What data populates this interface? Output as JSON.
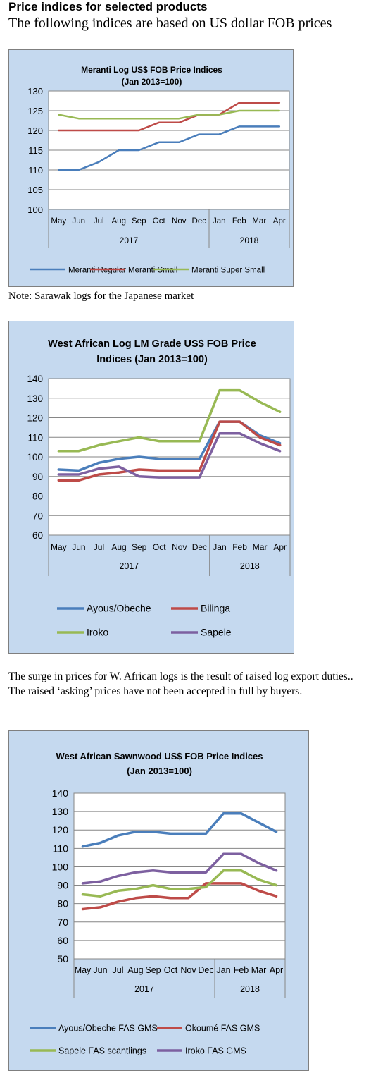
{
  "page": {
    "heading": "Price indices for selected products",
    "subheading": "The following indices are based on US dollar FOB prices",
    "note": "Note: Sarawak logs for the Japanese market",
    "paragraph": "The surge in prices for W. African logs is the result of raised log export duties.. The raised ‘asking’ prices have not been accepted in full by buyers."
  },
  "chart_data": [
    {
      "type": "line",
      "title": [
        "Meranti Log US$ FOB Price Indices",
        "(Jan 2013=100)"
      ],
      "categories": [
        "May",
        "Jun",
        "Jul",
        "Aug",
        "Sep",
        "Oct",
        "Nov",
        "Dec",
        "Jan",
        "Feb",
        "Mar",
        "Apr"
      ],
      "groups": [
        {
          "label": "2017",
          "count": 8
        },
        {
          "label": "2018",
          "count": 4
        }
      ],
      "ylim": [
        100,
        130
      ],
      "yticks": [
        100,
        105,
        110,
        115,
        120,
        125,
        130
      ],
      "grid": true,
      "legend_position": "bottom",
      "series": [
        {
          "name": "Meranti Regular",
          "color": "#4a7ebb",
          "values": [
            110,
            110,
            112,
            115,
            115,
            117,
            117,
            119,
            119,
            121,
            121,
            121
          ]
        },
        {
          "name": "Meranti Small",
          "color": "#be4b48",
          "values": [
            120,
            120,
            120,
            120,
            120,
            122,
            122,
            124,
            124,
            127,
            127,
            127
          ]
        },
        {
          "name": "Meranti Super Small",
          "color": "#98b954",
          "values": [
            124,
            123,
            123,
            123,
            123,
            123,
            123,
            124,
            124,
            125,
            125,
            125
          ]
        }
      ]
    },
    {
      "type": "line",
      "title": [
        "West African Log LM Grade US$ FOB Price",
        "Indices (Jan 2013=100)"
      ],
      "categories": [
        "May",
        "Jun",
        "Jul",
        "Aug",
        "Sep",
        "Oct",
        "Nov",
        "Dec",
        "Jan",
        "Feb",
        "Mar",
        "Apr"
      ],
      "groups": [
        {
          "label": "2017",
          "count": 8
        },
        {
          "label": "2018",
          "count": 4
        }
      ],
      "ylim": [
        60,
        140
      ],
      "yticks": [
        60,
        70,
        80,
        90,
        100,
        110,
        120,
        130,
        140
      ],
      "grid": true,
      "legend_position": "bottom",
      "series": [
        {
          "name": "Ayous/Obeche",
          "color": "#4a7ebb",
          "values": [
            93.5,
            93,
            97,
            99,
            100,
            99,
            99,
            99,
            118,
            118,
            111,
            107
          ]
        },
        {
          "name": "Bilinga",
          "color": "#be4b48",
          "values": [
            88,
            88,
            91,
            92,
            93.5,
            93,
            93,
            93,
            118,
            118,
            110,
            106
          ]
        },
        {
          "name": "Iroko",
          "color": "#98b954",
          "values": [
            103,
            103,
            106,
            108,
            110,
            108,
            108,
            108,
            134,
            134,
            128,
            123
          ]
        },
        {
          "name": "Sapele",
          "color": "#7d60a0",
          "values": [
            91,
            91,
            94,
            95,
            90,
            89.5,
            89.5,
            89.5,
            112,
            112,
            107,
            103
          ]
        }
      ]
    },
    {
      "type": "line",
      "title": [
        "West African Sawnwood US$ FOB Price Indices",
        "(Jan 2013=100)"
      ],
      "categories": [
        "May",
        "Jun",
        "Jul",
        "Aug",
        "Sep",
        "Oct",
        "Nov",
        "Dec",
        "Jan",
        "Feb",
        "Mar",
        "Apr"
      ],
      "groups": [
        {
          "label": "2017",
          "count": 8
        },
        {
          "label": "2018",
          "count": 4
        }
      ],
      "ylim": [
        50,
        140
      ],
      "yticks": [
        50,
        60,
        70,
        80,
        90,
        100,
        110,
        120,
        130,
        140
      ],
      "grid": true,
      "legend_position": "bottom",
      "series": [
        {
          "name": "Ayous/Obeche FAS GMS",
          "color": "#4a7ebb",
          "values": [
            111,
            113,
            117,
            119,
            119,
            118,
            118,
            118,
            129,
            129,
            124,
            119
          ]
        },
        {
          "name": "Okoumé FAS GMS",
          "color": "#be4b48",
          "values": [
            77,
            78,
            81,
            83,
            84,
            83,
            83,
            91,
            91,
            91,
            87,
            84
          ]
        },
        {
          "name": "Sapele FAS scantlings",
          "color": "#98b954",
          "values": [
            85,
            84,
            87,
            88,
            90,
            88,
            88,
            89,
            98,
            98,
            93,
            90
          ]
        },
        {
          "name": "Iroko FAS GMS",
          "color": "#7d60a0",
          "values": [
            91,
            92,
            95,
            97,
            98,
            97,
            97,
            97,
            107,
            107,
            102,
            98
          ]
        }
      ]
    }
  ]
}
